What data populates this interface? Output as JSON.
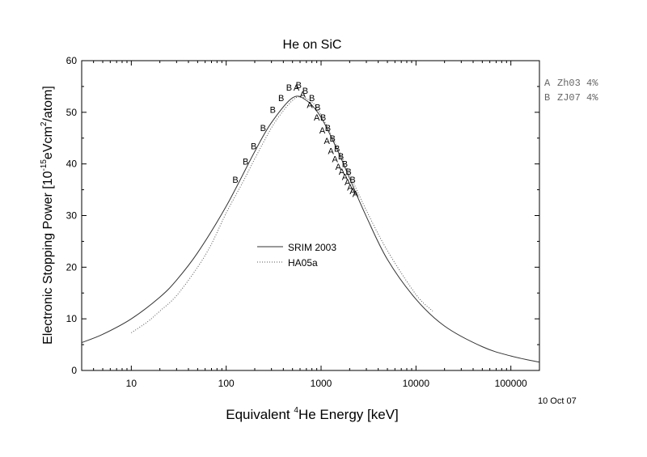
{
  "chart_data": {
    "type": "line",
    "title": "He on SiC",
    "xlabel": {
      "pre": "Equivalent ",
      "sup": "4",
      "post": "He Energy [keV]"
    },
    "ylabel": {
      "p1": "Electronic Stopping Power [10",
      "sup1": "-15",
      "p2": "eVcm",
      "sup2": "2",
      "p3": "/atom]"
    },
    "x_scale": "log",
    "xlim": [
      3,
      200000
    ],
    "ylim": [
      0,
      60
    ],
    "x_ticks": [
      10,
      100,
      1000,
      10000,
      100000
    ],
    "x_tick_labels": [
      "10",
      "100",
      "1000",
      "10000",
      "100000"
    ],
    "y_ticks": [
      0,
      10,
      20,
      30,
      40,
      50,
      60
    ],
    "y_tick_labels": [
      "0",
      "10",
      "20",
      "30",
      "40",
      "50",
      "60"
    ],
    "date_label": "10 Oct 07",
    "series": [
      {
        "name": "SRIM 2003",
        "style": "solid",
        "color": "#333333",
        "x": [
          3,
          5,
          10,
          20,
          30,
          50,
          100,
          200,
          300,
          500,
          700,
          1000,
          1500,
          2000,
          3000,
          5000,
          10000,
          20000,
          50000,
          100000,
          200000
        ],
        "y": [
          5.4,
          7.0,
          10.0,
          14.2,
          17.5,
          22.8,
          31.8,
          42.4,
          48.0,
          52.8,
          52.3,
          49.0,
          42.5,
          37.2,
          29.8,
          21.5,
          13.8,
          8.6,
          4.6,
          2.8,
          1.6
        ]
      },
      {
        "name": "HA05a",
        "style": "dotted",
        "color": "#555555",
        "x": [
          10,
          15,
          20,
          30,
          50,
          70,
          100,
          150,
          200,
          300,
          400,
          500,
          600,
          800,
          1000,
          1500,
          2000,
          3000,
          5000,
          10000,
          15000
        ],
        "y": [
          7.3,
          9.5,
          11.5,
          14.5,
          20.0,
          24.5,
          30.5,
          36.5,
          41.0,
          47.0,
          50.3,
          52.3,
          53.0,
          52.0,
          49.5,
          43.0,
          38.0,
          31.0,
          23.2,
          14.7,
          11.5
        ]
      }
    ],
    "markers": [
      {
        "label": "A",
        "ref": "Zh03 4%",
        "x": [
          550,
          640,
          760,
          900,
          1030,
          1150,
          1270,
          1400,
          1520,
          1650,
          1780,
          1900,
          2020,
          2150,
          2300
        ],
        "y": [
          54.8,
          53.5,
          51.5,
          49.0,
          46.5,
          44.5,
          42.5,
          41.0,
          39.5,
          38.5,
          37.5,
          36.5,
          35.5,
          34.8,
          34.2
        ]
      },
      {
        "label": "B",
        "ref": "ZJ07 4%",
        "x": [
          125,
          160,
          195,
          245,
          310,
          380,
          460,
          580,
          680,
          800,
          920,
          1050,
          1180,
          1320,
          1470,
          1620,
          1780,
          1950,
          2150
        ],
        "y": [
          37.0,
          40.5,
          43.5,
          47.0,
          50.5,
          52.8,
          54.8,
          55.3,
          54.2,
          52.8,
          51.0,
          49.0,
          47.0,
          45.0,
          43.0,
          41.5,
          40.0,
          38.5,
          37.0
        ]
      }
    ],
    "legend": {
      "placement": "center",
      "entries": [
        "SRIM 2003",
        "HA05a"
      ]
    },
    "side_legend": [
      {
        "label": "A",
        "text": "Zh03 4%"
      },
      {
        "label": "B",
        "text": "ZJ07 4%"
      }
    ]
  }
}
